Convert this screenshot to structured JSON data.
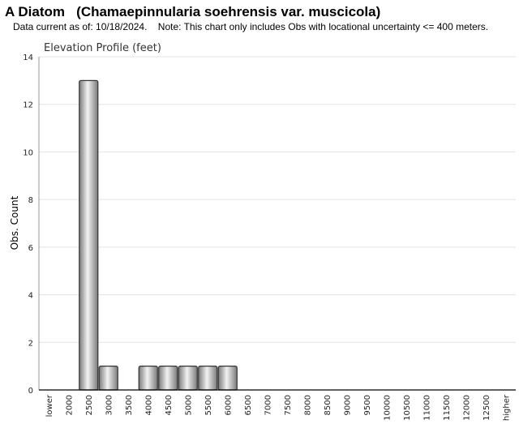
{
  "header": {
    "title": "A Diatom   (Chamaepinnularia soehrensis var. muscicola)",
    "subtitle": "Data current as of: 10/18/2024.    Note: This chart only includes Obs with locational uncertainty <= 400 meters."
  },
  "chart_data": {
    "type": "bar",
    "title": "Elevation Profile (feet)",
    "xlabel": "",
    "ylabel": "Obs. Count",
    "categories": [
      "lower",
      "2000",
      "2500",
      "3000",
      "3500",
      "4000",
      "4500",
      "5000",
      "5500",
      "6000",
      "6500",
      "7000",
      "7500",
      "8000",
      "8500",
      "9000",
      "9500",
      "10000",
      "10500",
      "11000",
      "11500",
      "12000",
      "12500",
      "higher"
    ],
    "values": [
      0,
      0,
      13,
      1,
      0,
      1,
      1,
      1,
      1,
      1,
      0,
      0,
      0,
      0,
      0,
      0,
      0,
      0,
      0,
      0,
      0,
      0,
      0,
      0
    ],
    "ylim": [
      0,
      14
    ],
    "yticks": [
      0,
      2,
      4,
      6,
      8,
      10,
      12,
      14
    ],
    "grid": true,
    "legend": "none",
    "colors": {
      "bar_light": "#f2f2f2",
      "bar_dark": "#7a7a7a",
      "bar_stroke": "#333333",
      "grid": "#e3e3e3"
    }
  }
}
